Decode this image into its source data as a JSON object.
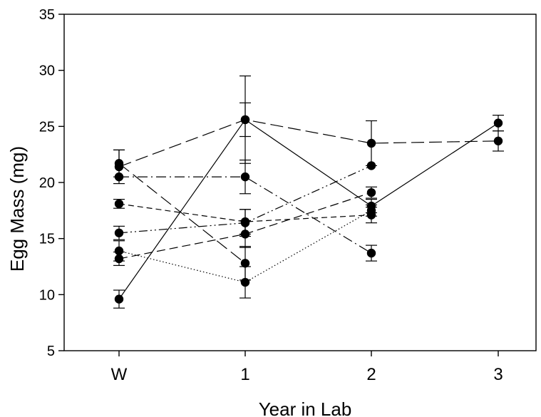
{
  "chart_data": {
    "type": "line",
    "title": "",
    "xlabel": "Year in Lab",
    "ylabel": "Egg Mass (mg)",
    "categories": [
      "W",
      "1",
      "2",
      "3"
    ],
    "ylim": [
      5,
      35
    ],
    "yticks": [
      5,
      10,
      15,
      20,
      25,
      30,
      35
    ],
    "grid": false,
    "legend": "none",
    "series": [
      {
        "style": "solid",
        "values": [
          9.6,
          25.6,
          17.9,
          25.3
        ],
        "errors": [
          0.8,
          3.9,
          0.6,
          0.7
        ]
      },
      {
        "style": "long-dash",
        "values": [
          21.4,
          25.6,
          23.5,
          23.7
        ],
        "errors": [
          1.5,
          1.5,
          2.0,
          0.9
        ]
      },
      {
        "style": "long-dash",
        "values": [
          21.7,
          12.8,
          null,
          null
        ],
        "errors": [
          1.2,
          1.5,
          null,
          null
        ]
      },
      {
        "style": "dash-dot",
        "values": [
          20.5,
          20.5,
          13.7,
          null
        ],
        "errors": [
          0.0,
          1.5,
          0.7,
          null
        ]
      },
      {
        "style": "short-dash",
        "values": [
          18.1,
          16.5,
          17.1,
          null
        ],
        "errors": [
          0.4,
          1.1,
          0.7,
          null
        ]
      },
      {
        "style": "dash-dot-dot",
        "values": [
          15.5,
          16.4,
          21.5,
          null
        ],
        "errors": [
          0.6,
          1.2,
          0.0,
          null
        ]
      },
      {
        "style": "dash",
        "values": [
          13.2,
          15.4,
          19.1,
          null
        ],
        "errors": [
          0.6,
          1.2,
          0.5,
          null
        ]
      },
      {
        "style": "dotted",
        "values": [
          13.9,
          11.1,
          17.5,
          null
        ],
        "errors": [
          0.9,
          1.4,
          0.5,
          null
        ]
      }
    ]
  }
}
